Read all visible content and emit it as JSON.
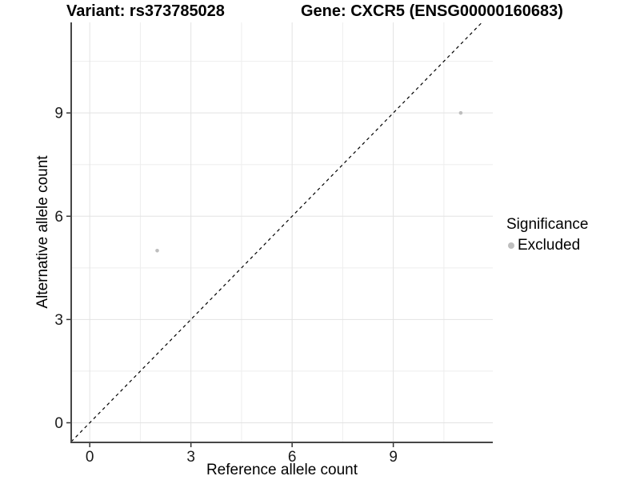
{
  "titles": {
    "variant": "Variant: rs373785028",
    "gene": "Gene: CXCR5 (ENSG00000160683)"
  },
  "chart_data": {
    "type": "scatter",
    "title_left": "Variant: rs373785028",
    "title_right": "Gene: CXCR5 (ENSG00000160683)",
    "xlabel": "Reference allele count",
    "ylabel": "Alternative allele count",
    "x_ticks": [
      0,
      3,
      6,
      9
    ],
    "y_ticks": [
      0,
      3,
      6,
      9
    ],
    "x_minor_ticks": [
      1.5,
      4.5,
      7.5,
      10.5
    ],
    "y_minor_ticks": [
      1.5,
      4.5,
      7.5,
      10.5
    ],
    "xlim": [
      -0.55,
      11.95
    ],
    "ylim": [
      -0.57,
      11.63
    ],
    "grid": true,
    "background": "#ffffff",
    "reference_line": {
      "equation": "y = x",
      "style": "dashed",
      "color": "#000000"
    },
    "series": [
      {
        "name": "Excluded",
        "color": "#bebebe",
        "point_radius": 2.3,
        "points": [
          [
            2,
            5
          ],
          [
            11,
            9
          ]
        ]
      }
    ],
    "legend": {
      "position": "right",
      "title": "Significance",
      "items": [
        {
          "label": "Excluded",
          "color": "#bebebe"
        }
      ]
    }
  }
}
